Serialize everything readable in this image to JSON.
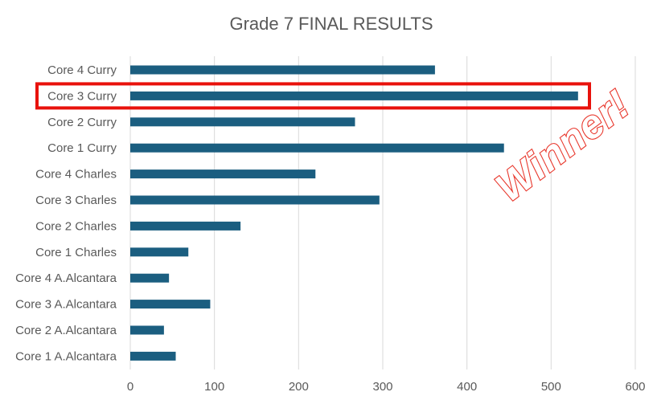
{
  "chart_data": {
    "type": "bar",
    "orientation": "horizontal",
    "title": "Grade 7 FINAL RESULTS",
    "xlabel": "",
    "ylabel": "",
    "xlim": [
      0,
      600
    ],
    "ticks": [
      0,
      100,
      200,
      300,
      400,
      500,
      600
    ],
    "grid": true,
    "bar_color": "#1b5e80",
    "categories": [
      "Core 4 Curry",
      "Core 3 Curry",
      "Core 2 Curry",
      "Core 1 Curry",
      "Core 4 Charles",
      "Core 3 Charles",
      "Core 2 Charles",
      "Core 1 Charles",
      "Core 4 A.Alcantara",
      "Core 3 A.Alcantara",
      "Core 2 A.Alcantara",
      "Core 1 A.Alcantara"
    ],
    "values": [
      362,
      532,
      267,
      444,
      220,
      296,
      131,
      69,
      46,
      95,
      40,
      54
    ],
    "highlight": {
      "category": "Core 3 Curry",
      "color": "#e8120c"
    },
    "annotation": {
      "text": "Winner!",
      "color": "#e8362b"
    }
  }
}
